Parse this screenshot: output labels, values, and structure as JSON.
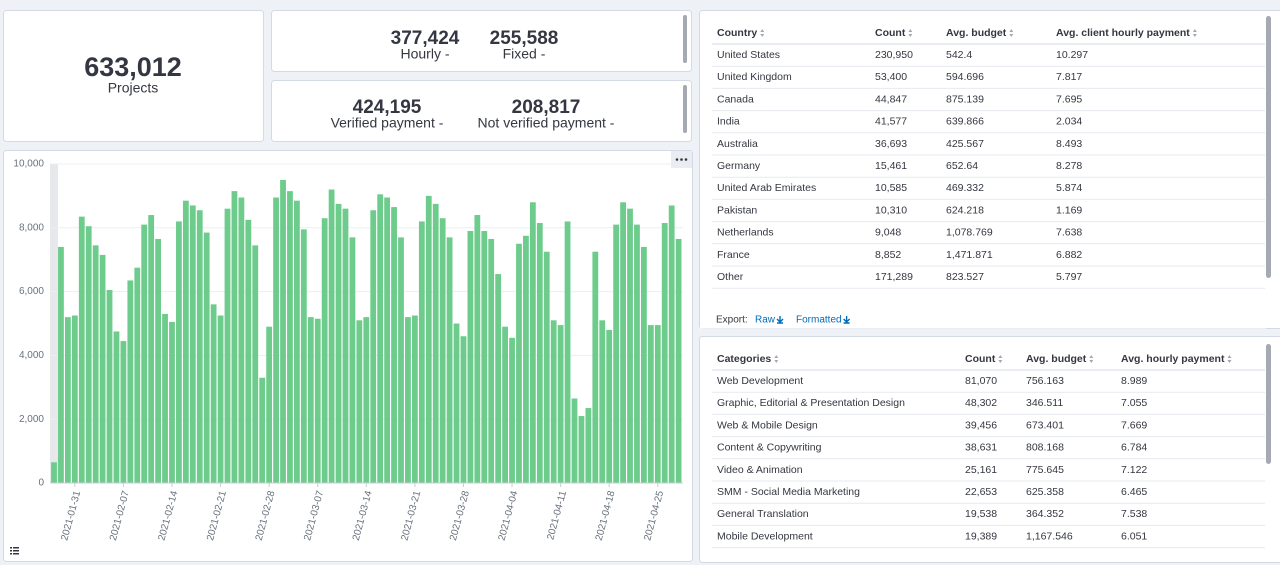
{
  "metrics": [
    {
      "value": "633,012",
      "label": "Projects"
    },
    {
      "value": "377,424",
      "label": "Hourly -"
    },
    {
      "value": "255,588",
      "label": "Fixed -"
    },
    {
      "value": "424,195",
      "label": "Verified payment -"
    },
    {
      "value": "208,817",
      "label": "Not verified payment -"
    }
  ],
  "chart_data": {
    "type": "bar",
    "x": [
      "2021-01-28",
      "2021-01-29",
      "2021-01-30",
      "2021-01-31",
      "2021-02-01",
      "2021-02-02",
      "2021-02-03",
      "2021-02-04",
      "2021-02-05",
      "2021-02-06",
      "2021-02-07",
      "2021-02-08",
      "2021-02-09",
      "2021-02-10",
      "2021-02-11",
      "2021-02-12",
      "2021-02-13",
      "2021-02-14",
      "2021-02-15",
      "2021-02-16",
      "2021-02-17",
      "2021-02-18",
      "2021-02-19",
      "2021-02-20",
      "2021-02-21",
      "2021-02-22",
      "2021-02-23",
      "2021-02-24",
      "2021-02-25",
      "2021-02-26",
      "2021-02-27",
      "2021-02-28",
      "2021-03-01",
      "2021-03-02",
      "2021-03-03",
      "2021-03-04",
      "2021-03-05",
      "2021-03-06",
      "2021-03-07",
      "2021-03-08",
      "2021-03-09",
      "2021-03-10",
      "2021-03-11",
      "2021-03-12",
      "2021-03-13",
      "2021-03-14",
      "2021-03-15",
      "2021-03-16",
      "2021-03-17",
      "2021-03-18",
      "2021-03-19",
      "2021-03-20",
      "2021-03-21",
      "2021-03-22",
      "2021-03-23",
      "2021-03-24",
      "2021-03-25",
      "2021-03-26",
      "2021-03-27",
      "2021-03-28",
      "2021-03-29",
      "2021-03-30",
      "2021-03-31",
      "2021-04-01",
      "2021-04-02",
      "2021-04-03",
      "2021-04-04",
      "2021-04-05",
      "2021-04-06",
      "2021-04-07",
      "2021-04-08",
      "2021-04-09",
      "2021-04-10",
      "2021-04-11",
      "2021-04-12",
      "2021-04-13",
      "2021-04-14",
      "2021-04-15",
      "2021-04-16",
      "2021-04-17",
      "2021-04-18",
      "2021-04-19",
      "2021-04-20",
      "2021-04-21",
      "2021-04-22",
      "2021-04-23",
      "2021-04-24",
      "2021-04-25",
      "2021-04-26",
      "2021-04-27",
      "2021-04-28"
    ],
    "values": [
      650,
      7400,
      5200,
      5250,
      8350,
      8050,
      7450,
      7150,
      6050,
      4750,
      4450,
      6350,
      6750,
      8100,
      8400,
      7650,
      5300,
      5050,
      8200,
      8850,
      8700,
      8550,
      7850,
      5600,
      5250,
      8600,
      9150,
      8950,
      8250,
      7450,
      3300,
      4900,
      8950,
      9500,
      9150,
      8850,
      7950,
      5200,
      5150,
      8300,
      9200,
      8750,
      8600,
      7700,
      5100,
      5200,
      8550,
      9050,
      8950,
      8650,
      7700,
      5200,
      5250,
      8200,
      9000,
      8750,
      8300,
      7700,
      5000,
      4600,
      7900,
      8400,
      7900,
      7650,
      6550,
      4900,
      4550,
      7500,
      7750,
      8800,
      8150,
      7250,
      5100,
      4950,
      8200,
      2650,
      2100,
      2350,
      7250,
      5100,
      4800,
      8100,
      8800,
      8600,
      8100,
      7400,
      4950,
      4950,
      8150,
      8700,
      7650
    ],
    "color": "#6dcc8c",
    "ylim": [
      0,
      10000
    ],
    "yticks": [
      0,
      {
        "value": 2000,
        "label": "2,000"
      },
      {
        "value": 4000,
        "label": "4,000"
      },
      {
        "value": 6000,
        "label": "6,000"
      },
      {
        "value": 8000,
        "label": "8,000"
      },
      {
        "value": 10000,
        "label": "10,000"
      }
    ],
    "xticks": [
      "2021-01-31",
      "2021-02-07",
      "2021-02-14",
      "2021-02-21",
      "2021-02-28",
      "2021-03-07",
      "2021-03-14",
      "2021-03-21",
      "2021-03-28",
      "2021-04-04",
      "2021-04-11",
      "2021-04-18",
      "2021-04-25"
    ],
    "grid": true
  },
  "country_table": {
    "headers": [
      "Country",
      "Count",
      "Avg. budget",
      "Avg. client hourly payment"
    ],
    "rows": [
      [
        "United States",
        "230,950",
        "542.4",
        "10.297"
      ],
      [
        "United Kingdom",
        "53,400",
        "594.696",
        "7.817"
      ],
      [
        "Canada",
        "44,847",
        "875.139",
        "7.695"
      ],
      [
        "India",
        "41,577",
        "639.866",
        "2.034"
      ],
      [
        "Australia",
        "36,693",
        "425.567",
        "8.493"
      ],
      [
        "Germany",
        "15,461",
        "652.64",
        "8.278"
      ],
      [
        "United Arab Emirates",
        "10,585",
        "469.332",
        "5.874"
      ],
      [
        "Pakistan",
        "10,310",
        "624.218",
        "1.169"
      ],
      [
        "Netherlands",
        "9,048",
        "1,078.769",
        "7.638"
      ],
      [
        "France",
        "8,852",
        "1,471.871",
        "6.882"
      ],
      [
        "Other",
        "171,289",
        "823.527",
        "5.797"
      ]
    ],
    "export": {
      "label": "Export:",
      "links": [
        "Raw",
        "Formatted"
      ]
    }
  },
  "category_table": {
    "headers": [
      "Categories",
      "Count",
      "Avg. budget",
      "Avg. hourly payment"
    ],
    "rows": [
      [
        "Web Development",
        "81,070",
        "756.163",
        "8.989"
      ],
      [
        "Graphic, Editorial & Presentation Design",
        "48,302",
        "346.511",
        "7.055"
      ],
      [
        "Web & Mobile Design",
        "39,456",
        "673.401",
        "7.669"
      ],
      [
        "Content & Copywriting",
        "38,631",
        "808.168",
        "6.784"
      ],
      [
        "Video & Animation",
        "25,161",
        "775.645",
        "7.122"
      ],
      [
        "SMM - Social Media Marketing",
        "22,653",
        "625.358",
        "6.465"
      ],
      [
        "General Translation",
        "19,538",
        "364.352",
        "7.538"
      ],
      [
        "Mobile Development",
        "19,389",
        "1,167.546",
        "6.051"
      ]
    ]
  }
}
